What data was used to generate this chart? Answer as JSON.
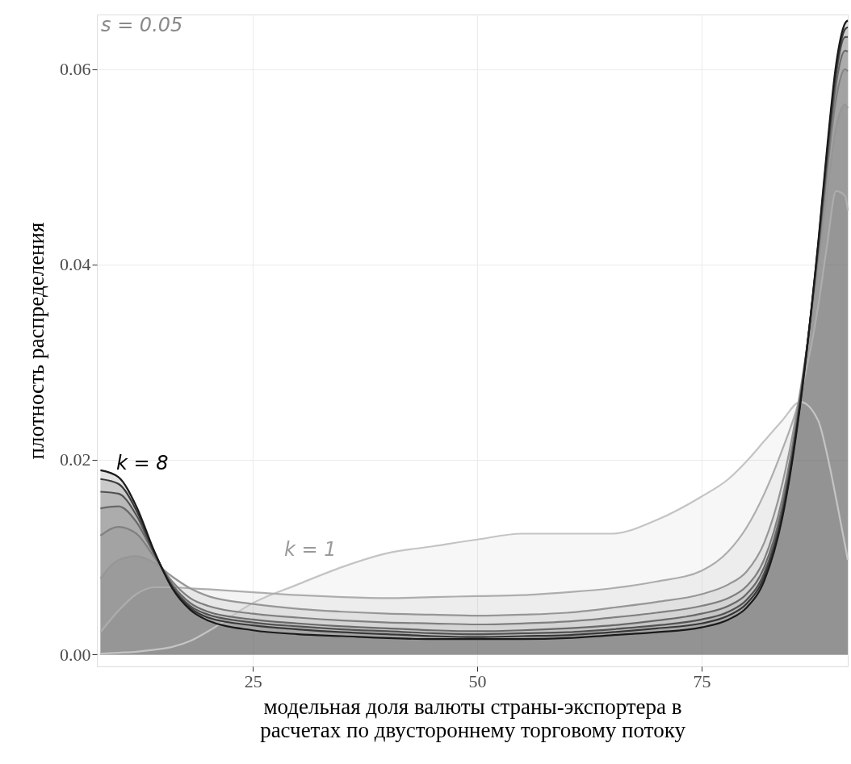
{
  "chart_data": {
    "type": "area",
    "xlabel": "модельная доля валюты страны-экспортера в\nрасчетах по двустороннему торговому потоку",
    "ylabel": "плотность распределения",
    "x": [
      8,
      10,
      12,
      14,
      16,
      18,
      20,
      25,
      30,
      35,
      40,
      45,
      50,
      55,
      60,
      65,
      70,
      75,
      78,
      80,
      82,
      84,
      86,
      88,
      89,
      90,
      91,
      91.3
    ],
    "series": [
      {
        "color": "#c4c4c4",
        "values": [
          0.0001,
          0.0002,
          0.0003,
          0.0005,
          0.0008,
          0.0014,
          0.0024,
          0.0053,
          0.0072,
          0.009,
          0.0104,
          0.0111,
          0.0118,
          0.0124,
          0.0124,
          0.0124,
          0.0138,
          0.0162,
          0.018,
          0.0198,
          0.0219,
          0.024,
          0.0259,
          0.024,
          0.0205,
          0.016,
          0.0112,
          0.0097
        ]
      },
      {
        "color": "#adadad",
        "values": [
          0.0023,
          0.0045,
          0.0062,
          0.0069,
          0.0069,
          0.0068,
          0.0067,
          0.0064,
          0.0061,
          0.0059,
          0.0058,
          0.0059,
          0.006,
          0.0061,
          0.0064,
          0.0068,
          0.0075,
          0.0086,
          0.0106,
          0.013,
          0.0165,
          0.021,
          0.0265,
          0.0357,
          0.042,
          0.0475,
          0.047,
          0.0455
        ]
      },
      {
        "color": "#969696",
        "values": [
          0.0078,
          0.0097,
          0.0101,
          0.0094,
          0.008,
          0.0068,
          0.006,
          0.0052,
          0.0047,
          0.0044,
          0.0042,
          0.0041,
          0.004,
          0.0041,
          0.0043,
          0.0048,
          0.0054,
          0.0062,
          0.0072,
          0.0085,
          0.0115,
          0.0175,
          0.027,
          0.04,
          0.0475,
          0.054,
          0.0564,
          0.056
        ]
      },
      {
        "color": "#808080",
        "values": [
          0.0122,
          0.0131,
          0.0124,
          0.01,
          0.0075,
          0.0058,
          0.005,
          0.0042,
          0.0038,
          0.0035,
          0.0033,
          0.0032,
          0.0031,
          0.0032,
          0.0034,
          0.0038,
          0.0043,
          0.005,
          0.0058,
          0.007,
          0.0098,
          0.016,
          0.0265,
          0.041,
          0.0495,
          0.057,
          0.06,
          0.0598
        ]
      },
      {
        "color": "#696969",
        "values": [
          0.015,
          0.0152,
          0.0136,
          0.0103,
          0.0072,
          0.0053,
          0.0044,
          0.0036,
          0.0032,
          0.0029,
          0.0027,
          0.0025,
          0.0024,
          0.0025,
          0.0027,
          0.003,
          0.0035,
          0.0042,
          0.005,
          0.0062,
          0.009,
          0.0152,
          0.0262,
          0.0415,
          0.0505,
          0.0585,
          0.0619,
          0.0618
        ]
      },
      {
        "color": "#525252",
        "values": [
          0.0167,
          0.0165,
          0.0143,
          0.0104,
          0.007,
          0.005,
          0.0041,
          0.0033,
          0.0029,
          0.0026,
          0.0024,
          0.0022,
          0.0021,
          0.0022,
          0.0023,
          0.0026,
          0.003,
          0.0036,
          0.0044,
          0.0056,
          0.0084,
          0.0147,
          0.026,
          0.0418,
          0.051,
          0.0595,
          0.0633,
          0.0633
        ]
      },
      {
        "color": "#383838",
        "values": [
          0.018,
          0.0175,
          0.0148,
          0.0105,
          0.0069,
          0.0048,
          0.0038,
          0.003,
          0.0026,
          0.0023,
          0.0021,
          0.0019,
          0.0018,
          0.0019,
          0.002,
          0.0023,
          0.0027,
          0.0032,
          0.004,
          0.0052,
          0.008,
          0.0143,
          0.0258,
          0.042,
          0.0515,
          0.06,
          0.0641,
          0.0643
        ]
      },
      {
        "color": "#1a1a1a",
        "values": [
          0.0189,
          0.0182,
          0.0152,
          0.0106,
          0.0068,
          0.0046,
          0.0035,
          0.0025,
          0.0021,
          0.0019,
          0.0017,
          0.0016,
          0.0016,
          0.0016,
          0.0017,
          0.002,
          0.0023,
          0.0028,
          0.0036,
          0.0048,
          0.0076,
          0.014,
          0.0256,
          0.0422,
          0.052,
          0.0605,
          0.0647,
          0.065
        ]
      }
    ],
    "xlim": [
      7.6,
      91.3
    ],
    "ylim": [
      -0.0012,
      0.0656
    ],
    "xticks": [
      25,
      50,
      75
    ],
    "yticks": [
      {
        "value": 0,
        "label": "0.00"
      },
      {
        "value": 0.02,
        "label": "0.02"
      },
      {
        "value": 0.04,
        "label": "0.04"
      },
      {
        "value": 0.06,
        "label": "0.06"
      }
    ],
    "grid": true,
    "annotations": [
      "s = 0.05",
      "k = 8",
      "k = 1"
    ]
  }
}
